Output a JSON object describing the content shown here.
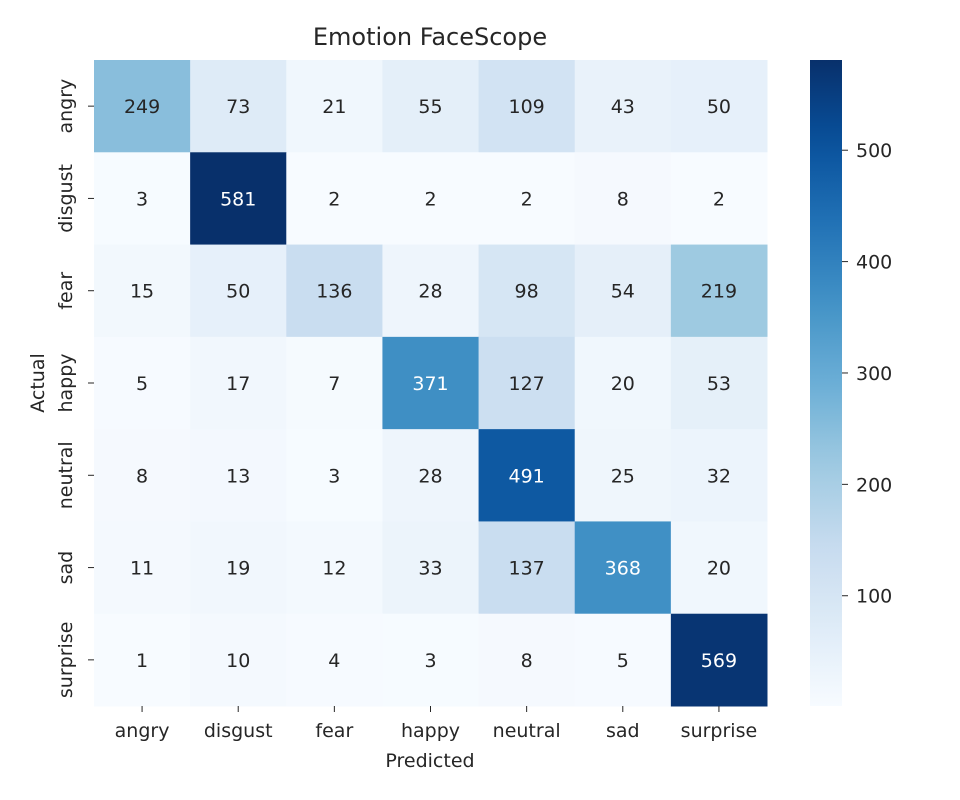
{
  "chart_data": {
    "type": "heatmap",
    "title": "Emotion FaceScope",
    "xlabel": "Predicted",
    "ylabel": "Actual",
    "x_categories": [
      "angry",
      "disgust",
      "fear",
      "happy",
      "neutral",
      "sad",
      "surprise"
    ],
    "y_categories": [
      "angry",
      "disgust",
      "fear",
      "happy",
      "neutral",
      "sad",
      "surprise"
    ],
    "values": [
      [
        249,
        73,
        21,
        55,
        109,
        43,
        50
      ],
      [
        3,
        581,
        2,
        2,
        2,
        8,
        2
      ],
      [
        15,
        50,
        136,
        28,
        98,
        54,
        219
      ],
      [
        5,
        17,
        7,
        371,
        127,
        20,
        53
      ],
      [
        8,
        13,
        3,
        28,
        491,
        25,
        32
      ],
      [
        11,
        19,
        12,
        33,
        137,
        368,
        20
      ],
      [
        1,
        10,
        4,
        3,
        8,
        5,
        569
      ]
    ],
    "colormap": "Blues",
    "colorbar": {
      "range": [
        1,
        581
      ],
      "ticks": [
        100,
        200,
        300,
        400,
        500
      ],
      "tick_labels": [
        "100",
        "200",
        "300",
        "400",
        "500"
      ]
    },
    "grid": false,
    "legend": "colorbar-right"
  }
}
